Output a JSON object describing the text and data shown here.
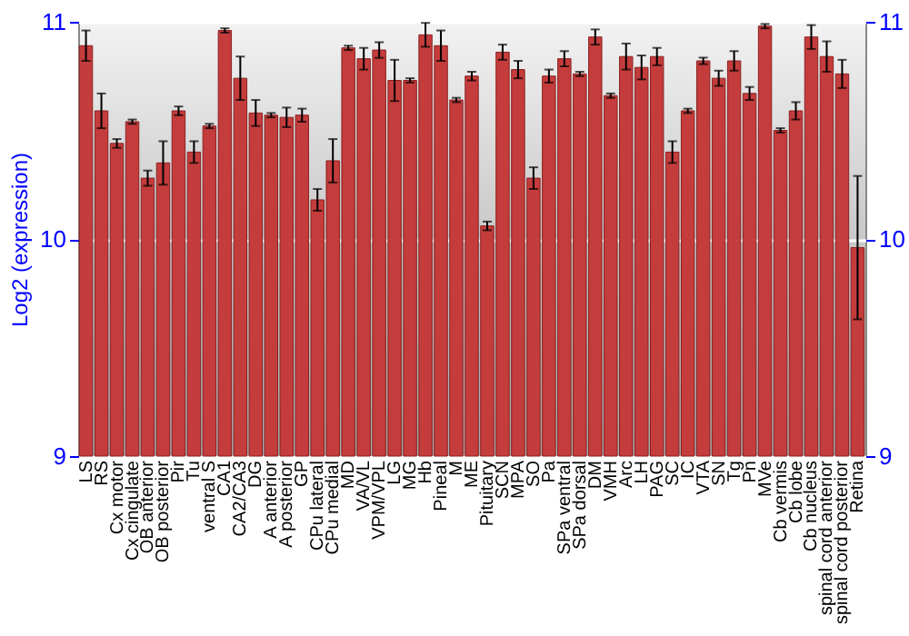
{
  "chart_data": {
    "type": "bar",
    "ylabel": "Log2 (expression)",
    "categories": [
      "LS",
      "RS",
      "Cx motor",
      "Cx cingulate",
      "OB anterior",
      "OB posterior",
      "Pir",
      "Tu",
      "ventral S",
      "CA1",
      "CA2/CA3",
      "DG",
      "A anterior",
      "A posterior",
      "GP",
      "CPu lateral",
      "CPu medial",
      "MD",
      "VA/VL",
      "VPM/VPL",
      "LG",
      "MG",
      "Hb",
      "Pineal",
      "M",
      "ME",
      "Pituitary",
      "SCN",
      "MPA",
      "SO",
      "Pa",
      "SPa ventral",
      "SPa dorsal",
      "DM",
      "VMH",
      "Arc",
      "LH",
      "PAG",
      "SC",
      "IC",
      "VTA",
      "SN",
      "Tg",
      "Pn",
      "MVe",
      "Cb vermis",
      "Cb lobe",
      "Cb nucleus",
      "spinal cord anterior",
      "spinal cord posterior",
      "Retina"
    ],
    "series": [
      {
        "color": "#c43c3c",
        "values": [
          10.89,
          10.59,
          10.44,
          10.54,
          10.28,
          10.35,
          10.59,
          10.4,
          10.52,
          10.96,
          10.74,
          10.58,
          10.57,
          10.56,
          10.57,
          10.18,
          10.36,
          10.88,
          10.83,
          10.87,
          10.73,
          10.73,
          10.94,
          10.89,
          10.64,
          10.75,
          10.06,
          10.86,
          10.78,
          10.28,
          10.75,
          10.83,
          10.76,
          10.93,
          10.66,
          10.84,
          10.79,
          10.84,
          10.4,
          10.59,
          10.82,
          10.74,
          10.82,
          10.67,
          10.98,
          10.5,
          10.59,
          10.93,
          10.84,
          10.76,
          9.96
        ],
        "errors": [
          0.07,
          0.08,
          0.02,
          0.01,
          0.035,
          0.1,
          0.02,
          0.05,
          0.01,
          0.01,
          0.1,
          0.06,
          0.01,
          0.045,
          0.03,
          0.05,
          0.1,
          0.01,
          0.05,
          0.036,
          0.095,
          0.01,
          0.055,
          0.07,
          0.01,
          0.02,
          0.02,
          0.035,
          0.04,
          0.05,
          0.03,
          0.035,
          0.01,
          0.035,
          0.01,
          0.06,
          0.055,
          0.04,
          0.05,
          0.01,
          0.015,
          0.035,
          0.045,
          0.03,
          0.01,
          0.01,
          0.04,
          0.055,
          0.07,
          0.065,
          0.33
        ]
      }
    ],
    "ylim": [
      9,
      11
    ],
    "yticks": [
      9,
      10,
      11
    ],
    "y2lim": [
      9,
      11
    ],
    "y2ticks": [
      9,
      10,
      11
    ],
    "grid": "y"
  }
}
